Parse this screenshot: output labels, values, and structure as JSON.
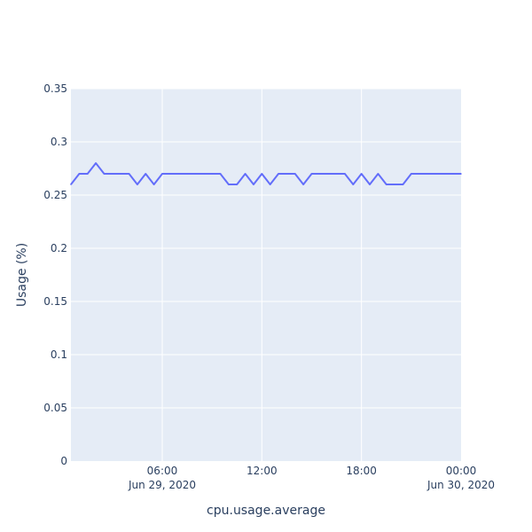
{
  "chart_data": {
    "type": "line",
    "xlabel": "cpu.usage.average",
    "ylabel": "Usage (%)",
    "x_range": [
      "2020-06-29T00:30",
      "2020-06-30T00:00"
    ],
    "ylim": [
      0,
      0.35
    ],
    "y_ticks": [
      0,
      0.05,
      0.1,
      0.15,
      0.2,
      0.25,
      0.3,
      0.35
    ],
    "y_tick_labels": [
      "0",
      "0.05",
      "0.1",
      "0.15",
      "0.2",
      "0.25",
      "0.3",
      "0.35"
    ],
    "x_ticks": [
      {
        "at": "2020-06-29T06:00",
        "label": "06:00",
        "sublabel": "Jun 29, 2020"
      },
      {
        "at": "2020-06-29T12:00",
        "label": "12:00",
        "sublabel": ""
      },
      {
        "at": "2020-06-29T18:00",
        "label": "18:00",
        "sublabel": ""
      },
      {
        "at": "2020-06-30T00:00",
        "label": "00:00",
        "sublabel": "Jun 30, 2020"
      }
    ],
    "grid": true,
    "series": [
      {
        "color": "#636efa",
        "x": [
          "2020-06-29T00:30",
          "2020-06-29T01:00",
          "2020-06-29T01:30",
          "2020-06-29T02:00",
          "2020-06-29T02:30",
          "2020-06-29T03:00",
          "2020-06-29T03:30",
          "2020-06-29T04:00",
          "2020-06-29T04:30",
          "2020-06-29T05:00",
          "2020-06-29T05:30",
          "2020-06-29T06:00",
          "2020-06-29T06:30",
          "2020-06-29T07:00",
          "2020-06-29T07:30",
          "2020-06-29T08:00",
          "2020-06-29T08:30",
          "2020-06-29T09:00",
          "2020-06-29T09:30",
          "2020-06-29T10:00",
          "2020-06-29T10:30",
          "2020-06-29T11:00",
          "2020-06-29T11:30",
          "2020-06-29T12:00",
          "2020-06-29T12:30",
          "2020-06-29T13:00",
          "2020-06-29T13:30",
          "2020-06-29T14:00",
          "2020-06-29T14:30",
          "2020-06-29T15:00",
          "2020-06-29T15:30",
          "2020-06-29T16:00",
          "2020-06-29T16:30",
          "2020-06-29T17:00",
          "2020-06-29T17:30",
          "2020-06-29T18:00",
          "2020-06-29T18:30",
          "2020-06-29T19:00",
          "2020-06-29T19:30",
          "2020-06-29T20:00",
          "2020-06-29T20:30",
          "2020-06-29T21:00",
          "2020-06-29T21:30",
          "2020-06-29T22:00",
          "2020-06-29T22:30",
          "2020-06-29T23:00",
          "2020-06-29T23:30",
          "2020-06-30T00:00"
        ],
        "y": [
          0.26,
          0.27,
          0.27,
          0.28,
          0.27,
          0.27,
          0.27,
          0.27,
          0.26,
          0.27,
          0.26,
          0.27,
          0.27,
          0.27,
          0.27,
          0.27,
          0.27,
          0.27,
          0.27,
          0.26,
          0.26,
          0.27,
          0.26,
          0.27,
          0.26,
          0.27,
          0.27,
          0.27,
          0.26,
          0.27,
          0.27,
          0.27,
          0.27,
          0.27,
          0.26,
          0.27,
          0.26,
          0.27,
          0.26,
          0.26,
          0.26,
          0.27,
          0.27,
          0.27,
          0.27,
          0.27,
          0.27,
          0.27
        ]
      }
    ]
  }
}
